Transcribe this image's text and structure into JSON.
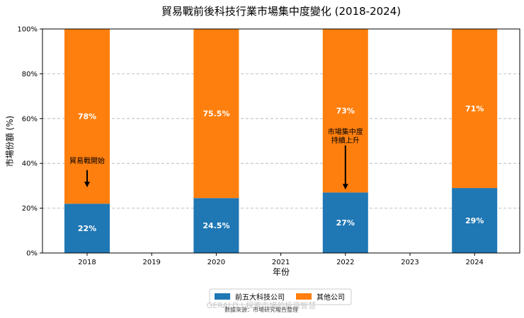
{
  "chart_data": {
    "type": "bar",
    "stacked": true,
    "title": "貿易戰前後科技行業市場集中度變化 (2018-2024)",
    "xlabel": "年份",
    "ylabel": "市場份額 (%)",
    "x_ticks": [
      "2018",
      "2019",
      "2020",
      "2021",
      "2022",
      "2023",
      "2024"
    ],
    "categories": [
      "2018",
      "2020",
      "2022",
      "2024"
    ],
    "series": [
      {
        "name": "前五大科技公司",
        "color": "#1f77b4",
        "values": [
          22,
          24.5,
          27,
          29
        ],
        "labels": [
          "22%",
          "24.5%",
          "27%",
          "29%"
        ]
      },
      {
        "name": "其他公司",
        "color": "#ff7f0e",
        "values": [
          78,
          75.5,
          73,
          71
        ],
        "labels": [
          "78%",
          "75.5%",
          "73%",
          "71%"
        ]
      }
    ],
    "ylim": [
      0,
      100
    ],
    "y_ticks": [
      0,
      20,
      40,
      60,
      80,
      100
    ],
    "y_tick_labels": [
      "0%",
      "20%",
      "40%",
      "60%",
      "80%",
      "100%"
    ],
    "grid": "horizontal dashed",
    "legend": "bottom-center",
    "annotations": [
      {
        "lines": [
          "貿易戰開始"
        ],
        "x": "2018",
        "text_y": 40,
        "arrow_from": 37,
        "arrow_to": 29
      },
      {
        "lines": [
          "市場集中度",
          "持續上升"
        ],
        "x": "2022",
        "text_y": 53,
        "arrow_from": 48,
        "arrow_to": 28
      }
    ]
  },
  "footer": {
    "watermark": "GERALD | 探索市場的投資智慧",
    "source": "數據來源：市場研究報告整理"
  }
}
